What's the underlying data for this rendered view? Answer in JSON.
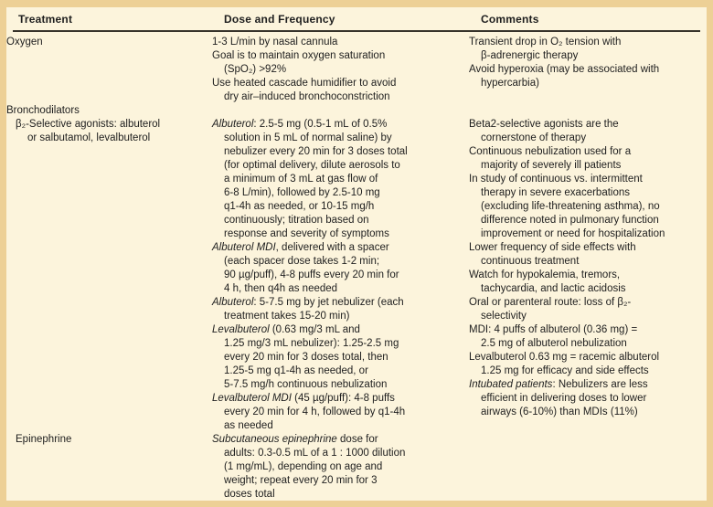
{
  "colors": {
    "frame": "#edd096",
    "background": "#fcf4dc",
    "text": "#1e1e1e",
    "rule": "#37332b"
  },
  "header": {
    "col1": "Treatment",
    "col2": "Dose and Frequency",
    "col3": "Comments"
  },
  "rows": [
    {
      "treatment": {
        "lines": [
          {
            "seg": [
              {
                "t": "Oxygen"
              }
            ]
          }
        ]
      },
      "dose": {
        "lines": [
          {
            "seg": [
              {
                "t": "1-3 L/min by nasal cannula"
              }
            ]
          },
          {
            "seg": [
              {
                "t": "Goal is to maintain oxygen saturation"
              }
            ]
          },
          {
            "ind": 1,
            "seg": [
              {
                "t": "(SpO₂) >92%"
              }
            ]
          },
          {
            "seg": [
              {
                "t": "Use heated cascade humidifier to avoid"
              }
            ]
          },
          {
            "ind": 1,
            "seg": [
              {
                "t": "dry air–induced bronchoconstriction"
              }
            ]
          }
        ]
      },
      "comments": {
        "lines": [
          {
            "seg": [
              {
                "t": "Transient drop in O₂ tension with"
              }
            ]
          },
          {
            "ind": 1,
            "seg": [
              {
                "t": "β-adrenergic therapy"
              }
            ]
          },
          {
            "seg": [
              {
                "t": "Avoid hyperoxia (may be associated with"
              }
            ]
          },
          {
            "ind": 1,
            "seg": [
              {
                "t": "hypercarbia)"
              }
            ]
          }
        ]
      }
    },
    {
      "treatment": {
        "lines": [
          {
            "seg": [
              {
                "t": "Bronchodilators"
              }
            ]
          }
        ]
      },
      "dose": {
        "lines": []
      },
      "comments": {
        "lines": []
      }
    },
    {
      "treatment": {
        "sub": true,
        "lines": [
          {
            "seg": [
              {
                "t": "β₂-Selective agonists: albuterol"
              }
            ]
          },
          {
            "ind": 1,
            "seg": [
              {
                "t": "or salbutamol, levalbuterol"
              }
            ]
          }
        ]
      },
      "dose": {
        "lines": [
          {
            "seg": [
              {
                "t": "Albuterol",
                "i": true
              },
              {
                "t": ": 2.5-5 mg (0.5-1 mL of 0.5%"
              }
            ]
          },
          {
            "ind": 1,
            "seg": [
              {
                "t": "solution in 5 mL of normal saline) by"
              }
            ]
          },
          {
            "ind": 1,
            "seg": [
              {
                "t": "nebulizer every 20 min for 3 doses total"
              }
            ]
          },
          {
            "ind": 1,
            "seg": [
              {
                "t": "(for optimal delivery, dilute aerosols to"
              }
            ]
          },
          {
            "ind": 1,
            "seg": [
              {
                "t": "a minimum of 3 mL at gas flow of"
              }
            ]
          },
          {
            "ind": 1,
            "seg": [
              {
                "t": "6-8 L/min), followed by 2.5-10 mg"
              }
            ]
          },
          {
            "ind": 1,
            "seg": [
              {
                "t": "q1-4h as needed, or 10-15 mg/h"
              }
            ]
          },
          {
            "ind": 1,
            "seg": [
              {
                "t": "continuously; titration based on"
              }
            ]
          },
          {
            "ind": 1,
            "seg": [
              {
                "t": "response and severity of symptoms"
              }
            ]
          },
          {
            "seg": [
              {
                "t": "Albuterol MDI",
                "i": true
              },
              {
                "t": ", delivered with a spacer"
              }
            ]
          },
          {
            "ind": 1,
            "seg": [
              {
                "t": "(each spacer dose takes 1-2 min;"
              }
            ]
          },
          {
            "ind": 1,
            "seg": [
              {
                "t": "90 µg/puff), 4-8 puffs every 20 min for"
              }
            ]
          },
          {
            "ind": 1,
            "seg": [
              {
                "t": "4 h, then q4h as needed"
              }
            ]
          },
          {
            "seg": [
              {
                "t": "Albuterol",
                "i": true
              },
              {
                "t": ": 5-7.5 mg by jet nebulizer (each"
              }
            ]
          },
          {
            "ind": 1,
            "seg": [
              {
                "t": "treatment takes 15-20 min)"
              }
            ]
          },
          {
            "seg": [
              {
                "t": "Levalbuterol",
                "i": true
              },
              {
                "t": " (0.63 mg/3 mL and"
              }
            ]
          },
          {
            "ind": 1,
            "seg": [
              {
                "t": "1.25 mg/3 mL nebulizer): 1.25-2.5 mg"
              }
            ]
          },
          {
            "ind": 1,
            "seg": [
              {
                "t": "every 20 min for 3 doses total, then"
              }
            ]
          },
          {
            "ind": 1,
            "seg": [
              {
                "t": "1.25-5 mg q1-4h as needed, or"
              }
            ]
          },
          {
            "ind": 1,
            "seg": [
              {
                "t": "5-7.5 mg/h continuous nebulization"
              }
            ]
          },
          {
            "seg": [
              {
                "t": "Levalbuterol MDI",
                "i": true
              },
              {
                "t": " (45 µg/puff): 4-8 puffs"
              }
            ]
          },
          {
            "ind": 1,
            "seg": [
              {
                "t": "every 20 min for 4 h, followed by q1-4h"
              }
            ]
          },
          {
            "ind": 1,
            "seg": [
              {
                "t": "as needed"
              }
            ]
          }
        ]
      },
      "comments": {
        "lines": [
          {
            "seg": [
              {
                "t": "Beta2-selective agonists are the"
              }
            ]
          },
          {
            "ind": 1,
            "seg": [
              {
                "t": "cornerstone of therapy"
              }
            ]
          },
          {
            "seg": [
              {
                "t": "Continuous nebulization used for a"
              }
            ]
          },
          {
            "ind": 1,
            "seg": [
              {
                "t": "majority of severely ill patients"
              }
            ]
          },
          {
            "seg": [
              {
                "t": "In study of continuous vs. intermittent"
              }
            ]
          },
          {
            "ind": 1,
            "seg": [
              {
                "t": "therapy in severe exacerbations"
              }
            ]
          },
          {
            "ind": 1,
            "seg": [
              {
                "t": "(excluding life-threatening asthma), no"
              }
            ]
          },
          {
            "ind": 1,
            "seg": [
              {
                "t": "difference noted in pulmonary function"
              }
            ]
          },
          {
            "ind": 1,
            "seg": [
              {
                "t": "improvement or need for hospitalization"
              }
            ]
          },
          {
            "seg": [
              {
                "t": "Lower frequency of side effects with"
              }
            ]
          },
          {
            "ind": 1,
            "seg": [
              {
                "t": "continuous treatment"
              }
            ]
          },
          {
            "seg": [
              {
                "t": "Watch for hypokalemia, tremors,"
              }
            ]
          },
          {
            "ind": 1,
            "seg": [
              {
                "t": "tachycardia, and lactic acidosis"
              }
            ]
          },
          {
            "seg": [
              {
                "t": "Oral or parenteral route: loss of β₂-"
              }
            ]
          },
          {
            "ind": 1,
            "seg": [
              {
                "t": "selectivity"
              }
            ]
          },
          {
            "seg": [
              {
                "t": "MDI: 4 puffs of albuterol (0.36 mg) ="
              }
            ]
          },
          {
            "ind": 1,
            "seg": [
              {
                "t": "2.5 mg of albuterol nebulization"
              }
            ]
          },
          {
            "seg": [
              {
                "t": "Levalbuterol 0.63 mg = racemic albuterol"
              }
            ]
          },
          {
            "ind": 1,
            "seg": [
              {
                "t": "1.25 mg for efficacy and side effects"
              }
            ]
          },
          {
            "seg": [
              {
                "t": "Intubated patients",
                "i": true
              },
              {
                "t": ": Nebulizers are less"
              }
            ]
          },
          {
            "ind": 1,
            "seg": [
              {
                "t": "efficient in delivering doses to lower"
              }
            ]
          },
          {
            "ind": 1,
            "seg": [
              {
                "t": "airways (6-10%) than MDIs (11%)"
              }
            ]
          }
        ]
      }
    },
    {
      "treatment": {
        "sub": true,
        "lines": [
          {
            "seg": [
              {
                "t": "Epinephrine"
              }
            ]
          }
        ]
      },
      "dose": {
        "lines": [
          {
            "seg": [
              {
                "t": "Subcutaneous epinephrine",
                "i": true
              },
              {
                "t": " dose for"
              }
            ]
          },
          {
            "ind": 1,
            "seg": [
              {
                "t": "adults: 0.3-0.5 mL of a 1 : 1000 dilution"
              }
            ]
          },
          {
            "ind": 1,
            "seg": [
              {
                "t": "(1 mg/mL), depending on age and"
              }
            ]
          },
          {
            "ind": 1,
            "seg": [
              {
                "t": "weight; repeat every 20 min for 3"
              }
            ]
          },
          {
            "ind": 1,
            "seg": [
              {
                "t": "doses total"
              }
            ]
          }
        ]
      },
      "comments": {
        "lines": []
      }
    }
  ]
}
